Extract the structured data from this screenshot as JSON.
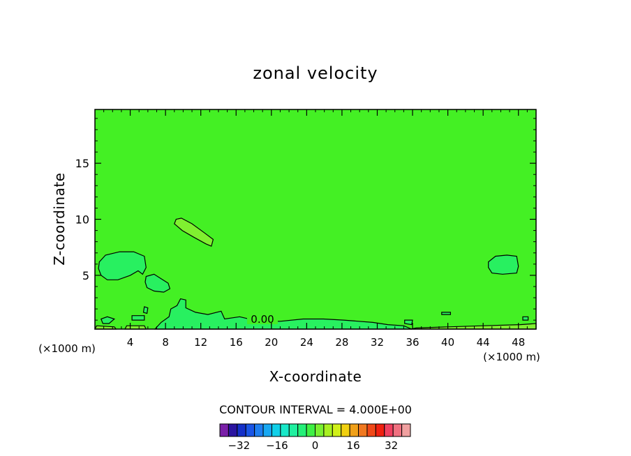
{
  "chart_data": {
    "type": "contour",
    "title": "zonal velocity",
    "xlabel": "X-coordinate",
    "ylabel": "Z-coordinate",
    "x_unit_label_left": "(×1000 m)",
    "x_unit_label_right": "(×1000 m)",
    "xlim": [
      0,
      50
    ],
    "ylim": [
      0.2,
      19.8
    ],
    "x_ticks": [
      4,
      8,
      12,
      16,
      20,
      24,
      28,
      32,
      36,
      40,
      44,
      48
    ],
    "y_ticks": [
      5,
      10,
      15
    ],
    "contour_interval_text": "CONTOUR INTERVAL = 4.000E+00",
    "contour_label": "0.00",
    "colorbar": {
      "colors": [
        "#7a1fa8",
        "#2b14a0",
        "#1530c8",
        "#1a55e6",
        "#1e7ef0",
        "#18a8f2",
        "#10cfe8",
        "#18e8c8",
        "#20f0a0",
        "#24f078",
        "#3ef044",
        "#7af030",
        "#a8f020",
        "#d0f018",
        "#f0d010",
        "#f0a018",
        "#f07820",
        "#f04818",
        "#f02010",
        "#f04060",
        "#f07080",
        "#f0a0a0"
      ],
      "tick_labels": [
        "-32",
        "-16",
        "0",
        "16",
        "32"
      ],
      "tick_values": [
        -32,
        -16,
        0,
        16,
        32
      ],
      "vmin": -40,
      "vmax": 40
    },
    "background_field_color": "#44f024",
    "regions": [
      {
        "kind": "positive",
        "color": "#80f030",
        "points": [
          [
            9.2,
            10.0
          ],
          [
            9.8,
            10.1
          ],
          [
            11.0,
            9.6
          ],
          [
            12.4,
            8.8
          ],
          [
            13.4,
            8.2
          ],
          [
            13.2,
            7.6
          ],
          [
            12.6,
            7.8
          ],
          [
            11.2,
            8.4
          ],
          [
            9.9,
            9.0
          ],
          [
            9.0,
            9.6
          ]
        ]
      },
      {
        "kind": "negative",
        "color": "#28f060",
        "points": [
          [
            0.5,
            6.2
          ],
          [
            1.2,
            6.8
          ],
          [
            2.8,
            7.1
          ],
          [
            4.4,
            7.1
          ],
          [
            5.6,
            6.7
          ],
          [
            5.8,
            5.7
          ],
          [
            5.4,
            5.1
          ],
          [
            4.9,
            5.4
          ],
          [
            4.0,
            5.0
          ],
          [
            2.6,
            4.6
          ],
          [
            1.4,
            4.6
          ],
          [
            0.7,
            5.0
          ],
          [
            0.4,
            5.6
          ]
        ]
      },
      {
        "kind": "negative",
        "color": "#28f060",
        "points": [
          [
            5.8,
            4.9
          ],
          [
            6.7,
            5.1
          ],
          [
            7.5,
            4.7
          ],
          [
            8.3,
            4.3
          ],
          [
            8.5,
            3.8
          ],
          [
            7.8,
            3.5
          ],
          [
            6.7,
            3.6
          ],
          [
            5.9,
            3.9
          ],
          [
            5.7,
            4.4
          ]
        ]
      },
      {
        "kind": "negative",
        "color": "#28f060",
        "points": [
          [
            44.6,
            6.2
          ],
          [
            45.4,
            6.7
          ],
          [
            46.7,
            6.8
          ],
          [
            47.8,
            6.7
          ],
          [
            48.0,
            5.8
          ],
          [
            47.8,
            5.2
          ],
          [
            46.2,
            5.1
          ],
          [
            45.0,
            5.2
          ],
          [
            44.6,
            5.7
          ]
        ]
      },
      {
        "kind": "negative",
        "color": "#28f060",
        "points": [
          [
            6.8,
            0.2
          ],
          [
            7.5,
            0.8
          ],
          [
            8.4,
            1.3
          ],
          [
            8.6,
            2.0
          ],
          [
            9.3,
            2.3
          ],
          [
            9.7,
            2.9
          ],
          [
            10.3,
            2.8
          ],
          [
            10.3,
            2.1
          ],
          [
            11.4,
            1.7
          ],
          [
            12.8,
            1.5
          ],
          [
            14.3,
            1.8
          ],
          [
            14.7,
            1.1
          ],
          [
            16.4,
            1.3
          ],
          [
            18.6,
            0.9
          ],
          [
            21.0,
            0.9
          ],
          [
            23.6,
            1.1
          ],
          [
            25.9,
            1.1
          ],
          [
            28.2,
            1.0
          ],
          [
            29.9,
            0.9
          ],
          [
            31.5,
            0.8
          ],
          [
            33.2,
            0.6
          ],
          [
            35.0,
            0.5
          ],
          [
            35.9,
            0.2
          ]
        ]
      },
      {
        "kind": "negative",
        "color": "#28f060",
        "points": [
          [
            0.7,
            1.1
          ],
          [
            1.4,
            1.3
          ],
          [
            2.2,
            1.1
          ],
          [
            1.6,
            0.7
          ],
          [
            0.9,
            0.7
          ]
        ]
      },
      {
        "kind": "negative",
        "color": "#28f060",
        "points": [
          [
            4.2,
            1.4
          ],
          [
            5.6,
            1.4
          ],
          [
            5.6,
            1.0
          ],
          [
            4.2,
            1.0
          ]
        ]
      },
      {
        "kind": "negative",
        "color": "#28f060",
        "points": [
          [
            5.6,
            2.2
          ],
          [
            6.0,
            2.1
          ],
          [
            5.9,
            1.6
          ],
          [
            5.5,
            1.7
          ]
        ]
      },
      {
        "kind": "negative",
        "color": "#28f060",
        "points": [
          [
            35.1,
            1.0
          ],
          [
            36.0,
            1.0
          ],
          [
            35.9,
            0.6
          ],
          [
            35.1,
            0.7
          ]
        ]
      },
      {
        "kind": "negative",
        "color": "#28f060",
        "points": [
          [
            39.3,
            1.7
          ],
          [
            40.3,
            1.7
          ],
          [
            40.3,
            1.5
          ],
          [
            39.3,
            1.5
          ]
        ]
      },
      {
        "kind": "negative",
        "color": "#28f060",
        "points": [
          [
            48.5,
            1.3
          ],
          [
            49.1,
            1.3
          ],
          [
            49.1,
            1.0
          ],
          [
            48.5,
            1.0
          ]
        ]
      },
      {
        "kind": "positive",
        "color": "#80f030",
        "points": [
          [
            3.4,
            0.2
          ],
          [
            5.8,
            0.2
          ],
          [
            5.6,
            0.5
          ],
          [
            3.6,
            0.5
          ]
        ]
      },
      {
        "kind": "positive",
        "color": "#80f030",
        "points": [
          [
            35.8,
            0.2
          ],
          [
            50.0,
            0.2
          ],
          [
            50.0,
            0.7
          ],
          [
            48.2,
            0.6
          ],
          [
            44.0,
            0.5
          ],
          [
            40.0,
            0.4
          ],
          [
            36.4,
            0.3
          ]
        ]
      },
      {
        "kind": "positive",
        "color": "#80f030",
        "points": [
          [
            0.0,
            0.2
          ],
          [
            2.4,
            0.2
          ],
          [
            2.2,
            0.4
          ],
          [
            0.2,
            0.5
          ]
        ]
      }
    ]
  }
}
